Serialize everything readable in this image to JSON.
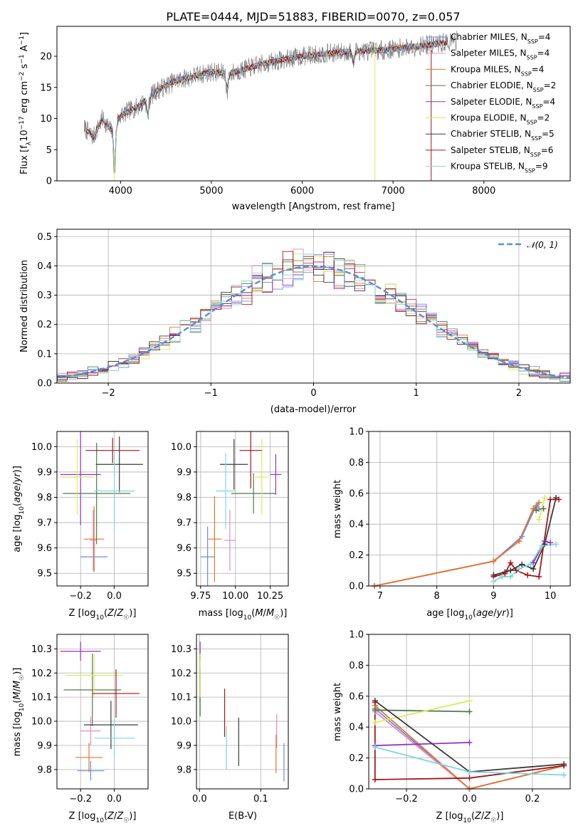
{
  "title": "PLATE=0444, MJD=51883, FIBERID=0070, z=0.057",
  "colors": {
    "Chabrier MILES": "#6a8de0",
    "Salpeter MILES": "#e68ac3",
    "Kroupa MILES": "#e0772d",
    "Chabrier ELODIE": "#4e7a4e",
    "Salpeter ELODIE": "#9a32c0",
    "Kroupa ELODIE": "#d8ec5a",
    "Chabrier STELIB": "#3b3b3b",
    "Salpeter STELIB": "#a4161a",
    "Kroupa STELIB": "#7bd8dc",
    "data": "#808080",
    "normal": "#5b8bd9"
  },
  "chart_data": [
    {
      "id": "spectrum",
      "type": "line",
      "xlabel": "wavelength [Angstrom, rest frame]",
      "ylabel": "Flux [f_λ10^-17 erg cm^-2 s^-1 A^-1]",
      "xlim": [
        3300,
        8950
      ],
      "ylim": [
        0,
        24.8
      ],
      "xticks": [
        4000,
        5000,
        6000,
        7000,
        8000
      ],
      "yticks": [
        0,
        5,
        10,
        15,
        20
      ],
      "grid": false,
      "legend_position": "right",
      "legend": [
        {
          "model": "Chabrier MILES",
          "nssp": "4"
        },
        {
          "model": "Salpeter MILES",
          "nssp": "4"
        },
        {
          "model": "Kroupa MILES",
          "nssp": "4"
        },
        {
          "model": "Chabrier ELODIE",
          "nssp": "2"
        },
        {
          "model": "Salpeter ELODIE",
          "nssp": "4"
        },
        {
          "model": "Kroupa ELODIE",
          "nssp": "2"
        },
        {
          "model": "Chabrier STELIB",
          "nssp": "5"
        },
        {
          "model": "Salpeter STELIB",
          "nssp": "6"
        },
        {
          "model": "Kroupa STELIB",
          "nssp": "9"
        }
      ],
      "continuum": {
        "x": [
          3600,
          3700,
          3800,
          3900,
          4000,
          4200,
          4400,
          4600,
          4800,
          5000,
          5200,
          5500,
          5800,
          6000,
          6300,
          6600,
          6900,
          7200,
          7500,
          7700
        ],
        "y": [
          8.5,
          7.0,
          10.0,
          8.0,
          10.5,
          12.0,
          14.5,
          16.0,
          16.8,
          17.5,
          17.2,
          18.5,
          19.5,
          20.0,
          20.5,
          20.8,
          21.0,
          21.5,
          22.0,
          22.5
        ]
      },
      "features": [
        {
          "x": 3934,
          "depth": 8
        },
        {
          "x": 4300,
          "depth": 3
        },
        {
          "x": 5175,
          "depth": 3
        },
        {
          "x": 6563,
          "depth": 2
        }
      ]
    },
    {
      "id": "residuals",
      "type": "bar",
      "xlabel": "(data-model)/error",
      "ylabel": "Normed distribution",
      "xlim": [
        -2.5,
        2.5
      ],
      "ylim": [
        0,
        0.525
      ],
      "xticks": [
        -2,
        -1,
        0,
        1,
        2
      ],
      "yticks": [
        0.0,
        0.1,
        0.2,
        0.3,
        0.4,
        0.5
      ],
      "grid": true,
      "legend_position": "top-right",
      "bins": 50,
      "series": [
        {
          "name": "𝒩(0, 1)",
          "mu": 0,
          "sigma": 1
        }
      ]
    },
    {
      "id": "age-vs-z",
      "type": "scatter",
      "xlabel": "Z [log10(Z/Z☉)]",
      "ylabel": "age  [log10(age/yr)]",
      "xlim": [
        -0.34,
        0.2
      ],
      "ylim": [
        9.45,
        10.06
      ],
      "xticks": [
        -0.2,
        0.0
      ],
      "yticks": [
        9.5,
        9.6,
        9.7,
        9.8,
        9.9,
        10.0
      ],
      "grid": true,
      "points": [
        {
          "model": "Chabrier MILES",
          "x": -0.12,
          "xerr": 0.08,
          "y": 9.565,
          "yerr": 0.06
        },
        {
          "model": "Salpeter MILES",
          "x": -0.125,
          "xerr": 0.02,
          "y": 9.63,
          "yerr": 0.12
        },
        {
          "model": "Kroupa MILES",
          "x": -0.12,
          "xerr": 0.06,
          "y": 9.635,
          "yerr": 0.13
        },
        {
          "model": "Chabrier ELODIE",
          "x": -0.105,
          "xerr": 0.2,
          "y": 9.815,
          "yerr": 0.2
        },
        {
          "model": "Salpeter ELODIE",
          "x": -0.2,
          "xerr": 0.12,
          "y": 9.89,
          "yerr": 0.2
        },
        {
          "model": "Kroupa ELODIE",
          "x": -0.22,
          "xerr": 0.1,
          "y": 9.88,
          "yerr": 0.15
        },
        {
          "model": "Chabrier STELIB",
          "x": 0.03,
          "xerr": 0.14,
          "y": 9.93,
          "yerr": 0.11
        },
        {
          "model": "Salpeter STELIB",
          "x": -0.01,
          "xerr": 0.16,
          "y": 9.985,
          "yerr": 0.05
        },
        {
          "model": "Kroupa STELIB",
          "x": 0.0,
          "xerr": 0.12,
          "y": 9.825,
          "yerr": 0.16
        }
      ]
    },
    {
      "id": "age-vs-mass",
      "type": "scatter",
      "xlabel": "mass [log10(M/M☉)]",
      "xlim": [
        9.72,
        10.38
      ],
      "ylim": [
        9.45,
        10.06
      ],
      "xticks": [
        9.75,
        10.0,
        10.25
      ],
      "yticks": [
        9.5,
        9.6,
        9.7,
        9.8,
        9.9,
        10.0
      ],
      "grid": true,
      "points": [
        {
          "model": "Chabrier MILES",
          "x": 9.8,
          "xerr": 0.05,
          "y": 9.565,
          "yerr": 0.12
        },
        {
          "model": "Salpeter MILES",
          "x": 9.96,
          "xerr": 0.04,
          "y": 9.63,
          "yerr": 0.12
        },
        {
          "model": "Kroupa MILES",
          "x": 9.85,
          "xerr": 0.05,
          "y": 9.635,
          "yerr": 0.17
        },
        {
          "model": "Chabrier ELODIE",
          "x": 10.13,
          "xerr": 0.16,
          "y": 9.815,
          "yerr": 0.08
        },
        {
          "model": "Salpeter ELODIE",
          "x": 10.29,
          "xerr": 0.04,
          "y": 9.89,
          "yerr": 0.08
        },
        {
          "model": "Kroupa ELODIE",
          "x": 10.19,
          "xerr": 0.05,
          "y": 9.88,
          "yerr": 0.15
        },
        {
          "model": "Chabrier STELIB",
          "x": 9.99,
          "xerr": 0.1,
          "y": 9.93,
          "yerr": 0.1
        },
        {
          "model": "Salpeter STELIB",
          "x": 10.11,
          "xerr": 0.08,
          "y": 9.985,
          "yerr": 0.15
        },
        {
          "model": "Kroupa STELIB",
          "x": 9.93,
          "xerr": 0.07,
          "y": 9.825,
          "yerr": 0.15
        }
      ]
    },
    {
      "id": "mass-weight-vs-age",
      "type": "line",
      "xlabel": "age  [log10(age/yr)]",
      "ylabel": "mass weight",
      "xlim": [
        6.8,
        10.35
      ],
      "ylim": [
        0,
        1.0
      ],
      "xticks": [
        7,
        8,
        9,
        10
      ],
      "yticks": [
        0.0,
        0.2,
        0.4,
        0.6,
        0.8,
        1.0
      ],
      "grid": true,
      "series": [
        {
          "model": "Chabrier MILES",
          "x": [
            6.9,
            9.0,
            9.5,
            9.75,
            9.8
          ],
          "y": [
            0.0,
            0.16,
            0.32,
            0.52,
            0.5
          ]
        },
        {
          "model": "Salpeter MILES",
          "x": [
            6.9,
            9.0,
            9.45,
            9.7,
            9.78
          ],
          "y": [
            0.0,
            0.16,
            0.29,
            0.5,
            0.5
          ]
        },
        {
          "model": "Kroupa MILES",
          "x": [
            6.9,
            9.0,
            9.45,
            9.7,
            9.8
          ],
          "y": [
            0.0,
            0.16,
            0.29,
            0.5,
            0.54
          ]
        },
        {
          "model": "Chabrier ELODIE",
          "x": [
            9.75,
            9.88
          ],
          "y": [
            0.49,
            0.5
          ]
        },
        {
          "model": "Salpeter ELODIE",
          "x": [
            9.7,
            9.9,
            10.0
          ],
          "y": [
            0.15,
            0.29,
            0.28
          ]
        },
        {
          "model": "Kroupa ELODIE",
          "x": [
            9.8,
            9.9
          ],
          "y": [
            0.43,
            0.57
          ]
        },
        {
          "model": "Chabrier STELIB",
          "x": [
            9.0,
            9.2,
            9.3,
            9.5,
            9.7,
            9.9,
            10.1
          ],
          "y": [
            0.07,
            0.09,
            0.1,
            0.14,
            0.11,
            0.27,
            0.57
          ]
        },
        {
          "model": "Salpeter STELIB",
          "x": [
            9.0,
            9.2,
            9.3,
            9.4,
            9.6,
            9.8,
            10.0,
            10.15
          ],
          "y": [
            0.06,
            0.08,
            0.15,
            0.1,
            0.07,
            0.06,
            0.56,
            0.56
          ]
        },
        {
          "model": "Kroupa STELIB",
          "x": [
            9.0,
            9.15,
            9.3,
            9.45,
            9.65,
            9.85,
            10.1
          ],
          "y": [
            0.03,
            0.06,
            0.06,
            0.11,
            0.14,
            0.26,
            0.27
          ]
        }
      ]
    },
    {
      "id": "mass-vs-z",
      "type": "scatter",
      "xlabel": "Z [log10(Z/Z☉)]",
      "ylabel": "mass [log10(M/M☉)]",
      "xlim": [
        -0.34,
        0.2
      ],
      "ylim": [
        9.72,
        10.36
      ],
      "xticks": [
        -0.2,
        0.0
      ],
      "yticks": [
        9.8,
        9.9,
        10.0,
        10.1,
        10.2,
        10.3
      ],
      "grid": true,
      "points": [
        {
          "model": "Chabrier MILES",
          "x": -0.14,
          "xerr": 0.08,
          "y": 9.795,
          "yerr": 0.04
        },
        {
          "model": "Salpeter MILES",
          "x": -0.14,
          "xerr": 0.06,
          "y": 9.96,
          "yerr": 0.06
        },
        {
          "model": "Kroupa MILES",
          "x": -0.15,
          "xerr": 0.08,
          "y": 9.85,
          "yerr": 0.06
        },
        {
          "model": "Chabrier ELODIE",
          "x": -0.13,
          "xerr": 0.17,
          "y": 10.13,
          "yerr": 0.15
        },
        {
          "model": "Salpeter ELODIE",
          "x": -0.2,
          "xerr": 0.12,
          "y": 10.29,
          "yerr": 0.04
        },
        {
          "model": "Kroupa ELODIE",
          "x": -0.12,
          "xerr": 0.17,
          "y": 10.19,
          "yerr": 0.09
        },
        {
          "model": "Chabrier STELIB",
          "x": -0.02,
          "xerr": 0.16,
          "y": 9.985,
          "yerr": 0.1
        },
        {
          "model": "Salpeter STELIB",
          "x": 0.01,
          "xerr": 0.14,
          "y": 10.115,
          "yerr": 0.1
        },
        {
          "model": "Kroupa STELIB",
          "x": 0.0,
          "xerr": 0.12,
          "y": 9.93,
          "yerr": 0.08
        }
      ]
    },
    {
      "id": "mass-vs-ebv",
      "type": "scatter",
      "xlabel": "E(B-V)",
      "xlim": [
        -0.005,
        0.145
      ],
      "ylim": [
        9.72,
        10.36
      ],
      "xticks": [
        0.0,
        0.1
      ],
      "yticks": [
        9.8,
        9.9,
        10.0,
        10.1,
        10.2,
        10.3
      ],
      "grid": true,
      "points": [
        {
          "model": "Chabrier MILES",
          "x": 0.138,
          "y": 9.83,
          "yerr": 0.08
        },
        {
          "model": "Salpeter MILES",
          "x": 0.126,
          "y": 9.96,
          "yerr": 0.07
        },
        {
          "model": "Kroupa MILES",
          "x": 0.125,
          "y": 9.865,
          "yerr": 0.08
        },
        {
          "model": "Chabrier ELODIE",
          "x": 0.001,
          "y": 10.12,
          "yerr": 0.1
        },
        {
          "model": "Salpeter ELODIE",
          "x": 0.001,
          "y": 10.29,
          "yerr": 0.04
        },
        {
          "model": "Kroupa ELODIE",
          "x": 0.001,
          "y": 10.19,
          "yerr": 0.09
        },
        {
          "model": "Chabrier STELIB",
          "x": 0.064,
          "y": 9.915,
          "yerr": 0.1
        },
        {
          "model": "Salpeter STELIB",
          "x": 0.041,
          "y": 10.035,
          "yerr": 0.1
        },
        {
          "model": "Kroupa STELIB",
          "x": 0.044,
          "y": 9.89,
          "yerr": 0.09
        }
      ]
    },
    {
      "id": "mass-weight-vs-z",
      "type": "line",
      "xlabel": "Z [log10(Z/Z☉)]",
      "ylabel": "mass weight",
      "xlim": [
        -0.32,
        0.32
      ],
      "ylim": [
        0,
        1.0
      ],
      "xticks": [
        -0.2,
        0.0,
        0.2
      ],
      "yticks": [
        0.0,
        0.2,
        0.4,
        0.6,
        0.8,
        1.0
      ],
      "grid": true,
      "series": [
        {
          "model": "Chabrier MILES",
          "x": [
            -0.3,
            0.0,
            0.3
          ],
          "y": [
            0.52,
            0.0,
            0.15
          ]
        },
        {
          "model": "Salpeter MILES",
          "x": [
            -0.3,
            0.0,
            0.3
          ],
          "y": [
            0.5,
            0.0,
            0.15
          ]
        },
        {
          "model": "Kroupa MILES",
          "x": [
            -0.3,
            0.0,
            0.3
          ],
          "y": [
            0.54,
            0.0,
            0.15
          ]
        },
        {
          "model": "Chabrier ELODIE",
          "x": [
            -0.3,
            0.0
          ],
          "y": [
            0.51,
            0.5
          ]
        },
        {
          "model": "Salpeter ELODIE",
          "x": [
            -0.3,
            0.0
          ],
          "y": [
            0.28,
            0.3
          ]
        },
        {
          "model": "Kroupa ELODIE",
          "x": [
            -0.3,
            0.0
          ],
          "y": [
            0.43,
            0.57
          ]
        },
        {
          "model": "Chabrier STELIB",
          "x": [
            -0.3,
            0.0,
            0.3
          ],
          "y": [
            0.57,
            0.11,
            0.16
          ]
        },
        {
          "model": "Salpeter STELIB",
          "x": [
            -0.3,
            -0.3,
            0.0,
            0.3
          ],
          "y": [
            0.56,
            0.06,
            0.07,
            0.15
          ]
        },
        {
          "model": "Kroupa STELIB",
          "x": [
            -0.3,
            0.0,
            0.3
          ],
          "y": [
            0.27,
            0.11,
            0.09
          ]
        }
      ]
    }
  ]
}
